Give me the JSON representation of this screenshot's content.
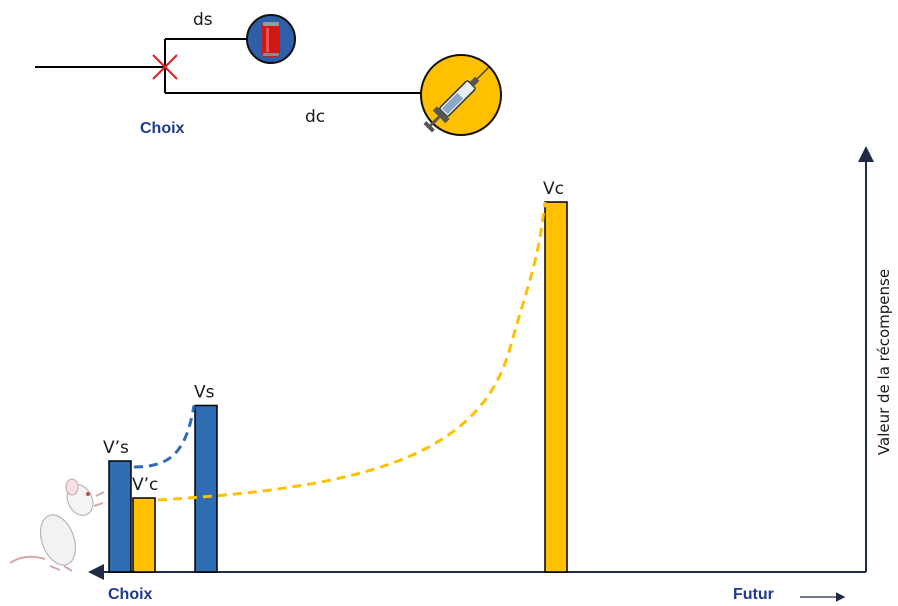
{
  "schema": {
    "choice_label": "Choix",
    "small_delay_label": "ds",
    "large_delay_label": "dc",
    "small_reward_icon": "soda-can-icon",
    "large_reward_icon": "syringe-icon"
  },
  "chart": {
    "y_axis_label": "Valeur de la récompense",
    "x_axis_start_label": "Choix",
    "x_axis_end_label": "Futur",
    "bars": [
      {
        "label": "V’s",
        "value": 0.3,
        "color": "#2e6db4",
        "position": "choice"
      },
      {
        "label": "V’c",
        "value": 0.2,
        "color": "#ffc000",
        "position": "choice"
      },
      {
        "label": "Vs",
        "value": 0.45,
        "color": "#2e6db4",
        "position": "small-delay"
      },
      {
        "label": "Vc",
        "value": 1.0,
        "color": "#ffc000",
        "position": "large-delay"
      }
    ],
    "discount_curves": [
      {
        "series": "small",
        "color": "#2e6db4",
        "style": "dashed"
      },
      {
        "series": "large",
        "color": "#ffc000",
        "style": "dashed"
      }
    ],
    "subject_icon": "rat-icon"
  }
}
